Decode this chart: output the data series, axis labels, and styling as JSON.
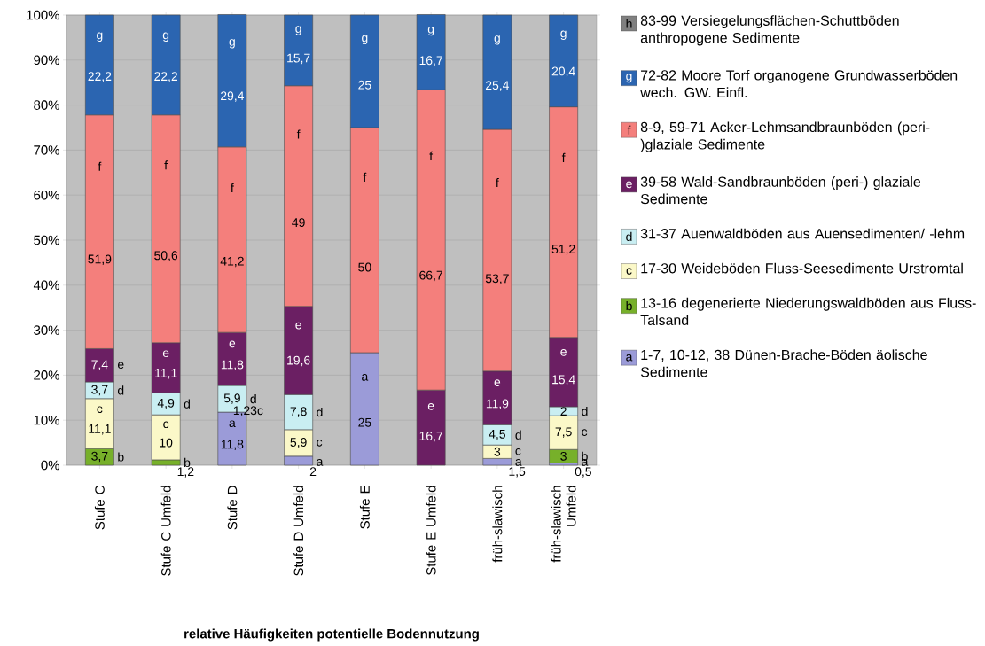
{
  "chart_data": {
    "type": "bar",
    "stacked": true,
    "xlabel": "relative  Häufigkeiten potentielle Bodennutzung",
    "categories": [
      "Stufe C",
      "Stufe C Umfeld",
      "Stufe D",
      "Stufe D Umfeld",
      "Stufe E",
      "Stufe E Umfeld",
      "früh-slawisch",
      "früh-slawisch Umfeld"
    ],
    "series": [
      {
        "name": "a",
        "color": "#9b9bd8",
        "values": [
          null,
          null,
          11.8,
          2,
          25,
          null,
          1.5,
          0.5
        ],
        "value_labels": [
          null,
          null,
          "11,8",
          "2",
          "25",
          null,
          "1,5",
          "0,5"
        ]
      },
      {
        "name": "b",
        "color": "#77b02a",
        "values": [
          3.7,
          1.2,
          null,
          null,
          null,
          null,
          null,
          3
        ],
        "value_labels": [
          "3,7",
          "1,2",
          null,
          null,
          null,
          null,
          null,
          "3"
        ]
      },
      {
        "name": "c",
        "color": "#fbf8c8",
        "values": [
          11.1,
          10,
          null,
          5.9,
          null,
          null,
          3,
          7.5
        ],
        "value_labels": [
          "11,1",
          "10",
          null,
          "5,9",
          null,
          null,
          "3",
          "7,5"
        ]
      },
      {
        "name": "d",
        "color": "#c9eef2",
        "values": [
          3.7,
          4.9,
          5.9,
          7.8,
          null,
          null,
          4.5,
          2
        ],
        "value_labels": [
          "3,7",
          "4,9",
          "5,9",
          "7,8",
          null,
          null,
          "4,5",
          "2"
        ]
      },
      {
        "name": "e",
        "color": "#6b1f63",
        "values": [
          7.4,
          11.1,
          11.8,
          19.6,
          null,
          16.7,
          11.9,
          15.4
        ],
        "value_labels": [
          "7,4",
          "11,1",
          "11,8",
          "19,6",
          null,
          "16,7",
          "11,9",
          "15,4"
        ]
      },
      {
        "name": "f",
        "color": "#f47f7c",
        "values": [
          51.9,
          50.6,
          41.2,
          49,
          50,
          66.7,
          53.7,
          51.2
        ],
        "value_labels": [
          "51,9",
          "50,6",
          "41,2",
          "49",
          "50",
          "66,7",
          "53,7",
          "51,2"
        ]
      },
      {
        "name": "g",
        "color": "#2b65b1",
        "values": [
          22.2,
          22.2,
          29.4,
          15.7,
          25,
          16.7,
          25.4,
          20.4
        ],
        "value_labels": [
          "22,2",
          "22,2",
          "29,4",
          "15,7",
          "25",
          "16,7",
          "25,4",
          "20,4"
        ]
      },
      {
        "name": "h",
        "color": "#808080",
        "values": [
          null,
          null,
          null,
          null,
          null,
          null,
          null,
          null
        ]
      }
    ],
    "ylim": [
      0,
      100
    ],
    "yticks": [
      {
        "value": 0,
        "label": "0%"
      },
      {
        "value": 10,
        "label": "10%"
      },
      {
        "value": 20,
        "label": "20%"
      },
      {
        "value": 30,
        "label": "30%"
      },
      {
        "value": 40,
        "label": "40%"
      },
      {
        "value": 50,
        "label": "50%"
      },
      {
        "value": 60,
        "label": "60%"
      },
      {
        "value": 70,
        "label": "70%"
      },
      {
        "value": 80,
        "label": "80%"
      },
      {
        "value": 90,
        "label": "90%"
      },
      {
        "value": 100,
        "label": "100%"
      }
    ],
    "grid": "y",
    "legend": "right",
    "annotations": [
      "1-7, 10-12, 38 Dünen-Brache-Böden äolische Sedimente",
      "13-16 degenerierte Niederungswaldböden aus Fluss-Talsand",
      "17-30 Weideböden Fluss-Seesedimente Urstromtal",
      "31-37 Auenwaldböden aus Auensedimenten/ -lehm",
      "39-58 Wald-Sandbraunböden (peri-) glaziale Sedimente",
      "8-9, 59-71 Acker-Lehmsandbraunböden (peri-)glaziale Sedimente",
      "72-82 Moore Torf organogene Grundwasserböden wech. GW. Einfl.",
      "83-99 Versiegelungsflächen-Schuttböden anthropogene Sedimente",
      {
        "text": "1,23c",
        "x": "Stufe D",
        "y": 12
      }
    ]
  }
}
